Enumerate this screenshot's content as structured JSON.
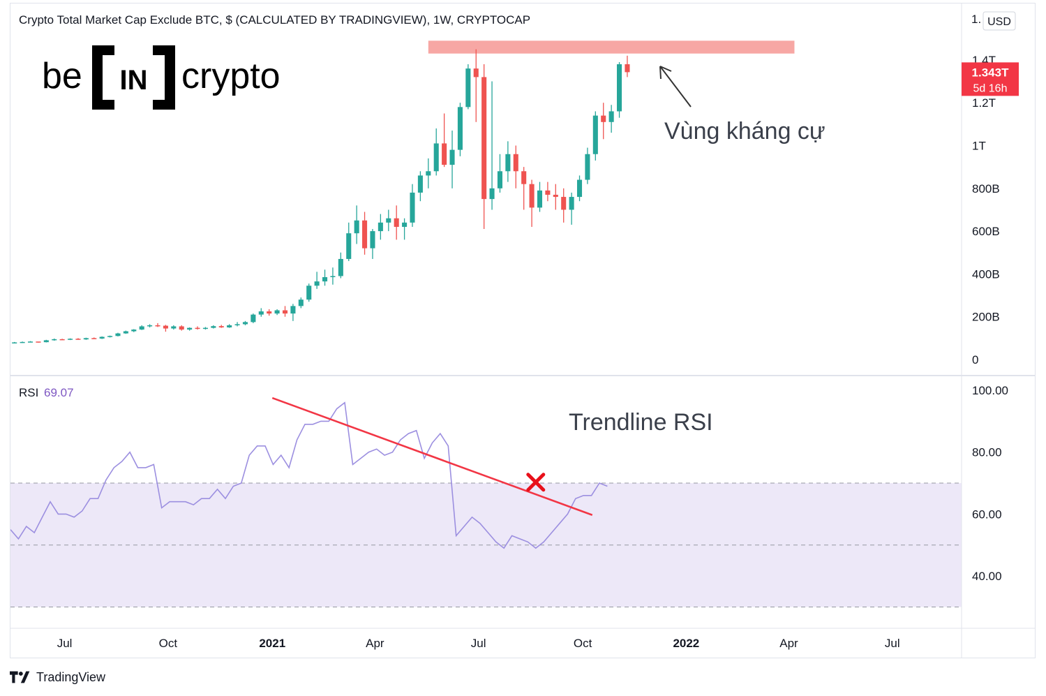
{
  "title": "Crypto Total Market Cap Exclude BTC, $ (CALCULATED BY TRADINGVIEW), 1W, CRYPTOCAP",
  "currency_button": "USD",
  "currency_prefix": "1.",
  "logo": {
    "left": "be",
    "mid": "IN",
    "right": "crypto"
  },
  "last_price": {
    "value": "1.343T",
    "countdown": "5d 16h"
  },
  "annotations": {
    "resistance": "Vùng kháng cự",
    "trendline": "Trendline RSI"
  },
  "rsi_label": "RSI",
  "rsi_value": "69.07",
  "footer": "TradingView",
  "colors": {
    "up": "#26a69a",
    "down": "#ef5350",
    "rsi": "#9c8fe0",
    "trendline": "#f23645",
    "resistance": "#f7a7a4",
    "rsi_band": "#ede8f8"
  },
  "chart_data": [
    {
      "type": "candlestick",
      "title": "Crypto Total Market Cap Exclude BTC, $ (CALCULATED BY TRADINGVIEW), 1W, CRYPTOCAP",
      "unit": "USD billions",
      "y_ticks": [
        {
          "v": 0,
          "label": "0"
        },
        {
          "v": 200,
          "label": "200B"
        },
        {
          "v": 400,
          "label": "400B"
        },
        {
          "v": 600,
          "label": "600B"
        },
        {
          "v": 800,
          "label": "800B"
        },
        {
          "v": 1000,
          "label": "1T"
        },
        {
          "v": 1200,
          "label": "1.2T"
        },
        {
          "v": 1400,
          "label": "1.4T"
        }
      ],
      "ylim": [
        0,
        1600
      ],
      "x_ticks": [
        {
          "t": 6.3,
          "label": "Jul"
        },
        {
          "t": 19.3,
          "label": "Oct"
        },
        {
          "t": 32.4,
          "label": "2021"
        },
        {
          "t": 45.3,
          "label": "Apr"
        },
        {
          "t": 58.3,
          "label": "Jul"
        },
        {
          "t": 71.4,
          "label": "Oct"
        },
        {
          "t": 84.4,
          "label": "2022"
        },
        {
          "t": 97.3,
          "label": "Apr"
        },
        {
          "t": 110.3,
          "label": "Jul"
        }
      ],
      "x_unit": "weeks since first candle",
      "xlim": [
        -0.5,
        119
      ],
      "last_price": 1343,
      "resistance_zone": {
        "x": [
          52,
          98
        ],
        "y": [
          1430,
          1490
        ]
      },
      "candles": [
        [
          78,
          82,
          76,
          80
        ],
        [
          80,
          84,
          78,
          82
        ],
        [
          82,
          86,
          80,
          84
        ],
        [
          84,
          83,
          79,
          81
        ],
        [
          81,
          92,
          80,
          90
        ],
        [
          90,
          98,
          88,
          95
        ],
        [
          95,
          97,
          91,
          93
        ],
        [
          93,
          99,
          91,
          97
        ],
        [
          97,
          100,
          92,
          94
        ],
        [
          94,
          102,
          92,
          100
        ],
        [
          100,
          103,
          96,
          98
        ],
        [
          98,
          108,
          96,
          106
        ],
        [
          106,
          112,
          103,
          110
        ],
        [
          110,
          125,
          108,
          122
        ],
        [
          122,
          135,
          120,
          132
        ],
        [
          132,
          142,
          128,
          140
        ],
        [
          140,
          160,
          138,
          155
        ],
        [
          155,
          165,
          150,
          160
        ],
        [
          160,
          170,
          152,
          158
        ],
        [
          158,
          162,
          130,
          145
        ],
        [
          145,
          160,
          140,
          155
        ],
        [
          155,
          160,
          135,
          140
        ],
        [
          140,
          150,
          135,
          148
        ],
        [
          148,
          155,
          140,
          146
        ],
        [
          146,
          152,
          140,
          148
        ],
        [
          148,
          160,
          145,
          156
        ],
        [
          156,
          162,
          148,
          150
        ],
        [
          150,
          165,
          148,
          160
        ],
        [
          160,
          175,
          155,
          165
        ],
        [
          165,
          180,
          160,
          175
        ],
        [
          175,
          215,
          170,
          210
        ],
        [
          210,
          240,
          200,
          225
        ],
        [
          225,
          235,
          205,
          215
        ],
        [
          215,
          235,
          208,
          230
        ],
        [
          230,
          250,
          200,
          215
        ],
        [
          215,
          260,
          180,
          250
        ],
        [
          250,
          290,
          240,
          280
        ],
        [
          280,
          355,
          270,
          345
        ],
        [
          345,
          410,
          330,
          365
        ],
        [
          365,
          420,
          345,
          385
        ],
        [
          385,
          430,
          350,
          390
        ],
        [
          390,
          500,
          380,
          470
        ],
        [
          470,
          640,
          460,
          590
        ],
        [
          590,
          720,
          540,
          650
        ],
        [
          650,
          690,
          490,
          520
        ],
        [
          520,
          610,
          470,
          600
        ],
        [
          600,
          680,
          560,
          640
        ],
        [
          640,
          700,
          600,
          660
        ],
        [
          660,
          720,
          560,
          620
        ],
        [
          620,
          660,
          560,
          640
        ],
        [
          640,
          820,
          620,
          780
        ],
        [
          780,
          880,
          740,
          860
        ],
        [
          860,
          940,
          800,
          880
        ],
        [
          880,
          1080,
          860,
          1010
        ],
        [
          1010,
          1150,
          900,
          910
        ],
        [
          910,
          1070,
          800,
          980
        ],
        [
          980,
          1200,
          950,
          1180
        ],
        [
          1180,
          1380,
          1170,
          1360
        ],
        [
          1360,
          1450,
          1110,
          1320
        ],
        [
          1320,
          1380,
          610,
          750
        ],
        [
          750,
          1300,
          700,
          800
        ],
        [
          800,
          960,
          780,
          880
        ],
        [
          880,
          1020,
          830,
          960
        ],
        [
          960,
          1000,
          800,
          880
        ],
        [
          880,
          900,
          700,
          820
        ],
        [
          820,
          840,
          620,
          710
        ],
        [
          710,
          830,
          690,
          790
        ],
        [
          790,
          830,
          740,
          770
        ],
        [
          770,
          820,
          700,
          760
        ],
        [
          760,
          800,
          640,
          700
        ],
        [
          700,
          780,
          630,
          760
        ],
        [
          760,
          860,
          740,
          840
        ],
        [
          840,
          990,
          820,
          960
        ],
        [
          960,
          1160,
          930,
          1140
        ],
        [
          1140,
          1200,
          1030,
          1110
        ],
        [
          1110,
          1190,
          1060,
          1160
        ],
        [
          1160,
          1390,
          1130,
          1380
        ],
        [
          1380,
          1420,
          1320,
          1343
        ]
      ]
    },
    {
      "type": "line",
      "title": "RSI",
      "y_ticks": [
        {
          "v": 40,
          "label": "40.00"
        },
        {
          "v": 60,
          "label": "60.00"
        },
        {
          "v": 80,
          "label": "80.00"
        },
        {
          "v": 100,
          "label": "100.00"
        }
      ],
      "ylim": [
        20,
        103
      ],
      "bands": [
        30,
        50,
        70
      ],
      "x_start": -0.5,
      "last_value": 69.07,
      "values": [
        55,
        52,
        56,
        54,
        59,
        64,
        60,
        60,
        59,
        61,
        65,
        65,
        71,
        75,
        77,
        80,
        75,
        75,
        76,
        62,
        64,
        64,
        64,
        63,
        65,
        65,
        68,
        65,
        69,
        70,
        79,
        82,
        82,
        76,
        79,
        75,
        84,
        89,
        89,
        90,
        90,
        94,
        96,
        76,
        78,
        80,
        81,
        79,
        80,
        84,
        86,
        87,
        78,
        83,
        86,
        82,
        53,
        56,
        59,
        57,
        54,
        51,
        49,
        53,
        52,
        51,
        49,
        51,
        54,
        57,
        60,
        65,
        66,
        66,
        70,
        69
      ],
      "trendline": {
        "from": [
          32.4,
          97.5
        ],
        "to": [
          72.6,
          59.7
        ]
      },
      "cross_marker": [
        65.5,
        70.3
      ]
    }
  ]
}
